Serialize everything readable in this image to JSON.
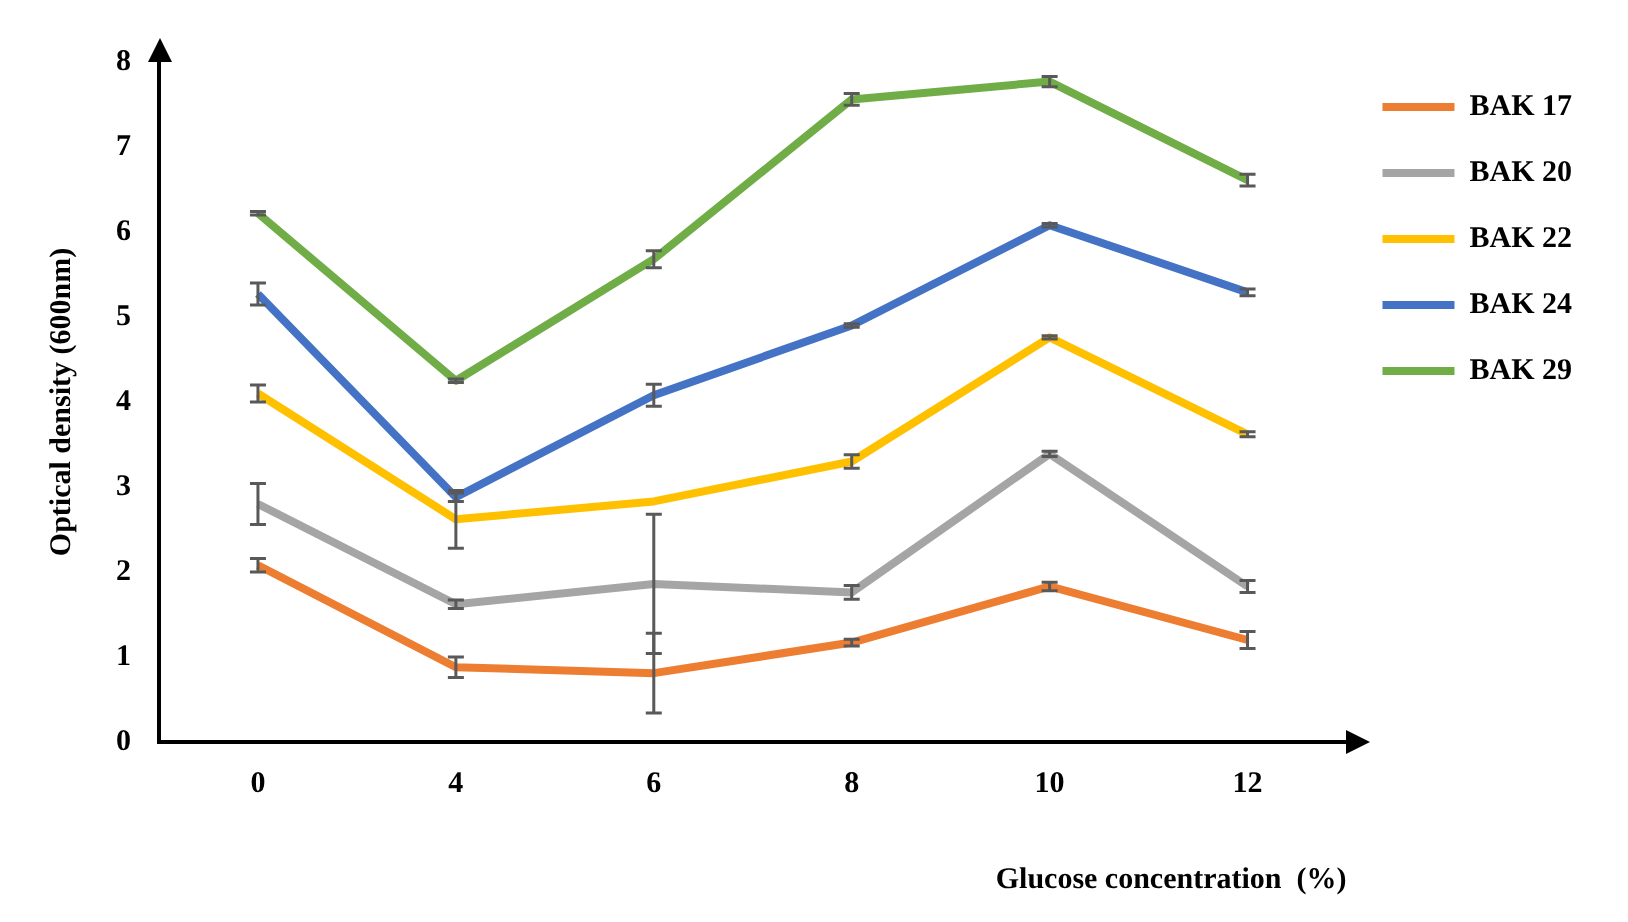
{
  "chart_data": {
    "type": "line",
    "xlabel": "Glucose concentration  (%)",
    "ylabel": "Optical density (600nm)",
    "categories": [
      "0",
      "4",
      "6",
      "8",
      "10",
      "12"
    ],
    "ylim": [
      0,
      8
    ],
    "yticks": [
      0,
      1,
      2,
      3,
      4,
      5,
      6,
      7,
      8
    ],
    "grid": false,
    "legend": "right",
    "line_style": "solid",
    "series": [
      {
        "name": "BAK 17",
        "color": "#ed7d31",
        "values": [
          2.08,
          0.88,
          0.81,
          1.17,
          1.83,
          1.2
        ],
        "errors": [
          0.08,
          0.12,
          0.47,
          0.04,
          0.05,
          0.1
        ]
      },
      {
        "name": "BAK 20",
        "color": "#a5a5a5",
        "values": [
          2.8,
          1.62,
          1.86,
          1.76,
          3.39,
          1.83
        ],
        "errors": [
          0.24,
          0.05,
          0.82,
          0.08,
          0.03,
          0.07
        ]
      },
      {
        "name": "BAK 22",
        "color": "#ffc000",
        "values": [
          4.1,
          2.62,
          2.83,
          3.3,
          4.76,
          3.62
        ],
        "errors": [
          0.1,
          0.34,
          null,
          0.08,
          0.02,
          0.03
        ]
      },
      {
        "name": "BAK 24",
        "color": "#4472c4",
        "values": [
          5.27,
          2.88,
          4.08,
          4.9,
          6.08,
          5.29
        ],
        "errors": [
          0.13,
          0.05,
          0.13,
          0.02,
          0.02,
          0.04
        ]
      },
      {
        "name": "BAK 29",
        "color": "#70ad47",
        "values": [
          6.22,
          4.25,
          5.68,
          7.56,
          7.77,
          6.61
        ],
        "errors": [
          0.02,
          0.02,
          0.1,
          0.07,
          0.06,
          0.07
        ]
      }
    ]
  }
}
